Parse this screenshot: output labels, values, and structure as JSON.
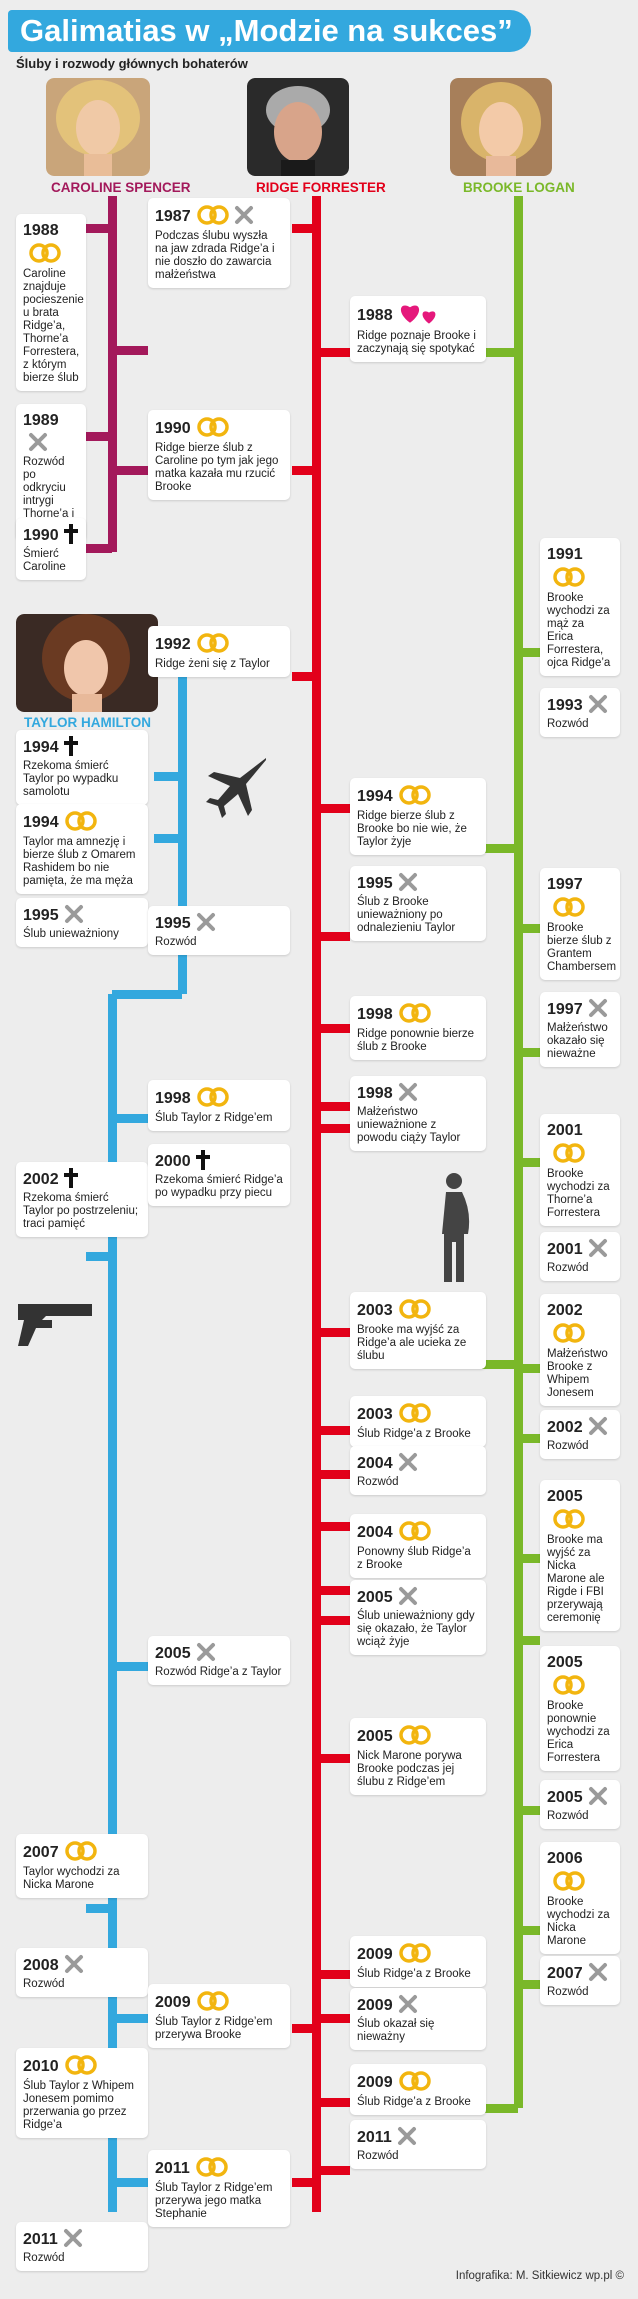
{
  "header": {
    "title": "Galimatias w „Modzie na sukces”",
    "subtitle": "Śluby i rozwody głównych bohaterów"
  },
  "colors": {
    "caroline": "#a3195b",
    "ridge": "#e2001a",
    "brooke": "#7ab829",
    "taylor": "#33a8de",
    "gold": "#f2b50f"
  },
  "people": {
    "caroline": "CAROLINE SPENCER",
    "ridge": "RIDGE FORRESTER",
    "brooke": "BROOKE LOGAN",
    "taylor": "TAYLOR HAMILTON"
  },
  "caroline": [
    {
      "year": "1988",
      "icon": "rings",
      "desc": "Caroline znajduje pocieszenie u brata Ridge’a, Thorne’a Forrestera, z którym bierze ślub"
    },
    {
      "year": "1989",
      "icon": "cross",
      "desc": "Rozwód po odkryciu intrygi Thorne’a i Brooke"
    },
    {
      "year": "1990",
      "icon": "dagger",
      "desc": "Śmierć Caroline"
    }
  ],
  "taylor": [
    {
      "year": "1994",
      "icon": "dagger",
      "desc": "Rzekoma śmierć Taylor po wypadku samolotu"
    },
    {
      "year": "1994",
      "icon": "rings",
      "desc": "Taylor ma amnezję i bierze ślub z Omarem Rashidem bo nie pamięta, że ma męża"
    },
    {
      "year": "1995",
      "icon": "cross",
      "desc": "Ślub unieważniony"
    },
    {
      "year": "2002",
      "icon": "dagger",
      "desc": "Rzekoma śmierć Taylor po postrzeleniu; traci pamięć"
    },
    {
      "year": "2007",
      "icon": "rings",
      "desc": "Taylor wychodzi za Nicka Marone"
    },
    {
      "year": "2008",
      "icon": "cross",
      "desc": "Rozwód"
    },
    {
      "year": "2010",
      "icon": "rings",
      "desc": "Ślub Taylor z Whipem Jonesem pomimo przerwania go przez Ridge’a"
    },
    {
      "year": "2011",
      "icon": "cross",
      "desc": "Rozwód"
    }
  ],
  "mid": [
    {
      "year": "1987",
      "icon": "rings-cross",
      "desc": "Podczas ślubu wyszła na jaw zdrada Ridge’a i nie doszło do zawarcia małżeństwa"
    },
    {
      "year": "1990",
      "icon": "rings",
      "desc": "Ridge bierze ślub z Caroline po tym jak jego matka kazała mu rzucić Brooke"
    },
    {
      "year": "1992",
      "icon": "rings",
      "desc": "Ridge żeni się z Taylor"
    },
    {
      "year": "1995",
      "icon": "cross",
      "desc": "Rozwód"
    },
    {
      "year": "1998",
      "icon": "rings",
      "desc": "Ślub Taylor z Ridge’em"
    },
    {
      "year": "2000",
      "icon": "dagger",
      "desc": "Rzekoma śmierć Ridge’a po wypadku przy piecu"
    },
    {
      "year": "2005",
      "icon": "cross",
      "desc": "Rozwód Ridge’a z Taylor"
    },
    {
      "year": "2009",
      "icon": "rings",
      "desc": "Ślub Taylor z Ridge’em przerywa Brooke"
    },
    {
      "year": "2011",
      "icon": "rings",
      "desc": "Ślub Taylor z Ridge’em przerywa jego matka Stephanie"
    }
  ],
  "ridge": [
    {
      "year": "1988",
      "icon": "hearts",
      "desc": "Ridge poznaje Brooke i zaczynają się spotykać"
    },
    {
      "year": "1994",
      "icon": "rings",
      "desc": "Ridge bierze ślub z Brooke bo nie wie, że Taylor żyje"
    },
    {
      "year": "1995",
      "icon": "cross",
      "desc": "Ślub z Brooke unieważniony po odnalezieniu Taylor"
    },
    {
      "year": "1998",
      "icon": "rings",
      "desc": "Ridge ponownie bierze ślub z Brooke"
    },
    {
      "year": "1998",
      "icon": "cross",
      "desc": "Małżeństwo unieważnione z powodu ciąży Taylor"
    },
    {
      "year": "2003",
      "icon": "rings",
      "desc": "Brooke ma wyjść za Ridge’a ale ucieka ze ślubu"
    },
    {
      "year": "2003",
      "icon": "rings",
      "desc": "Ślub Ridge’a z Brooke"
    },
    {
      "year": "2004",
      "icon": "cross",
      "desc": "Rozwód"
    },
    {
      "year": "2004",
      "icon": "rings",
      "desc": "Ponowny ślub Ridge’a z Brooke"
    },
    {
      "year": "2005",
      "icon": "cross",
      "desc": "Ślub unieważniony gdy się okazało, że Taylor wciąż żyje"
    },
    {
      "year": "2005",
      "icon": "rings",
      "desc": "Nick Marone porywa Brooke podczas jej ślubu z Ridge’em"
    },
    {
      "year": "2009",
      "icon": "rings",
      "desc": "Ślub Ridge’a z Brooke"
    },
    {
      "year": "2009",
      "icon": "cross",
      "desc": "Ślub okazał się nieważny"
    },
    {
      "year": "2009",
      "icon": "rings",
      "desc": "Ślub Ridge’a z Brooke"
    },
    {
      "year": "2011",
      "icon": "cross",
      "desc": "Rozwód"
    }
  ],
  "brooke": [
    {
      "year": "1991",
      "icon": "rings",
      "desc": "Brooke wychodzi za mąż za Erica Forrestera, ojca Ridge’a"
    },
    {
      "year": "1993",
      "icon": "cross",
      "desc": "Rozwód"
    },
    {
      "year": "1997",
      "icon": "rings",
      "desc": "Brooke bierze ślub z Grantem Chambersem"
    },
    {
      "year": "1997",
      "icon": "cross",
      "desc": "Małżeństwo okazało się nieważne"
    },
    {
      "year": "2001",
      "icon": "rings",
      "desc": "Brooke wychodzi za Thorne’a Forrestera"
    },
    {
      "year": "2001",
      "icon": "cross",
      "desc": "Rozwód"
    },
    {
      "year": "2002",
      "icon": "rings",
      "desc": "Małżeństwo Brooke z Whipem Jonesem"
    },
    {
      "year": "2002",
      "icon": "cross",
      "desc": "Rozwód"
    },
    {
      "year": "2005",
      "icon": "rings",
      "desc": "Brooke ma wyjść za Nicka Marone ale Rigde i FBI przerywają ceremonię"
    },
    {
      "year": "2005",
      "icon": "rings",
      "desc": "Brooke ponownie wychodzi za Erica Forrestera"
    },
    {
      "year": "2005",
      "icon": "cross",
      "desc": "Rozwód"
    },
    {
      "year": "2006",
      "icon": "rings",
      "desc": "Brooke wychodzi za Nicka Marone"
    },
    {
      "year": "2007",
      "icon": "cross",
      "desc": "Rozwód"
    }
  ],
  "footer": "Infografika: M. Sitkiewicz wp.pl ©"
}
